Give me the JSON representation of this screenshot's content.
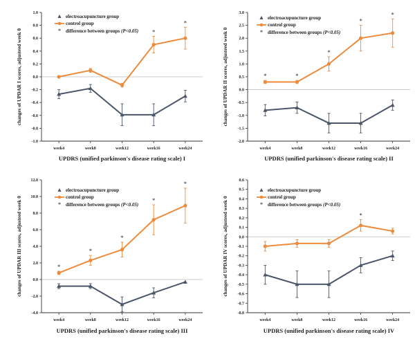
{
  "colors": {
    "electro": "#4a5568",
    "control": "#ed8b3d",
    "star": "#444444",
    "axis": "#333333",
    "zero": "#bbbbbb"
  },
  "legend": {
    "electro": "electroacupuncture group",
    "control": "control group",
    "diff_prefix": "difference between groups",
    "diff_p": "(P<0.05)"
  },
  "chart_data": [
    {
      "type": "line",
      "categories": [
        "week4",
        "week8",
        "week12",
        "week16",
        "week24"
      ],
      "ylim": [
        -1.0,
        1.0
      ],
      "yticks": [
        "-1.0",
        "-0.8",
        "-0.6",
        "-0.4",
        "-0.2",
        "0.0",
        "0.2",
        "0.4",
        "0.6",
        "0.8",
        "1.0"
      ],
      "ylabel": "changes of UPDAR I scores, adjusteed week 0",
      "xlabel": "UPDRS (unified parkinson's disease rating scale) I",
      "series": [
        {
          "name": "electroacupuncture group",
          "values": [
            -0.27,
            -0.18,
            -0.59,
            -0.59,
            -0.3
          ],
          "err": [
            0.07,
            0.06,
            0.17,
            0.17,
            0.09
          ]
        },
        {
          "name": "control group",
          "values": [
            0.0,
            0.1,
            -0.13,
            0.5,
            0.6
          ],
          "err": [
            0.0,
            0.03,
            0.03,
            0.13,
            0.17
          ]
        }
      ],
      "stars": [
        3,
        4
      ]
    },
    {
      "type": "line",
      "categories": [
        "week4",
        "week8",
        "week12",
        "week16",
        "week24"
      ],
      "ylim": [
        -2.0,
        3.0
      ],
      "yticks": [
        "-2.0",
        "-1.5",
        "-1.0",
        "-0.5",
        "0.0",
        "0.5",
        "1.0",
        "1.5",
        "2.0",
        "2.5",
        "3.0"
      ],
      "ylabel": "changes of UPDAR II scores, adjusteed week 0",
      "xlabel": "UPDRS (unified parkinson's disease rating scale) II",
      "series": [
        {
          "name": "electroacupuncture group",
          "values": [
            -0.8,
            -0.7,
            -1.3,
            -1.3,
            -0.6
          ],
          "err": [
            0.22,
            0.22,
            0.38,
            0.38,
            0.2
          ]
        },
        {
          "name": "control group",
          "values": [
            0.3,
            0.3,
            1.0,
            2.0,
            2.2
          ],
          "err": [
            0.06,
            0.06,
            0.28,
            0.5,
            0.55
          ]
        }
      ],
      "stars": [
        0,
        1,
        2,
        3,
        4
      ]
    },
    {
      "type": "line",
      "categories": [
        "week4",
        "week8",
        "week12",
        "week16",
        "week24"
      ],
      "ylim": [
        -4.0,
        12.0
      ],
      "yticks": [
        "-4.0",
        "-2.0",
        "0.0",
        "2.0",
        "4.0",
        "6.0",
        "8.0",
        "10.0",
        "12.0"
      ],
      "ylabel": "changes of UPDAR III scores, adjusteed week 0",
      "xlabel": "UPDRS (unified parkinson's disease rating scale) III",
      "series": [
        {
          "name": "electroacupuncture group",
          "values": [
            -0.8,
            -0.8,
            -3.0,
            -1.6,
            -0.3
          ],
          "err": [
            0.3,
            0.3,
            0.9,
            0.6,
            0.0
          ]
        },
        {
          "name": "control group",
          "values": [
            0.8,
            2.3,
            3.6,
            7.2,
            8.9
          ],
          "err": [
            0.2,
            0.6,
            0.9,
            1.8,
            2.1
          ]
        }
      ],
      "stars": [
        0,
        1,
        2,
        3,
        4
      ]
    },
    {
      "type": "line",
      "categories": [
        "week4",
        "week8",
        "week12",
        "week16",
        "week24"
      ],
      "ylim": [
        -0.8,
        0.6
      ],
      "yticks": [
        "-0.8",
        "-0.7",
        "-0.6",
        "-0.5",
        "-0.4",
        "-0.3",
        "-0.2",
        "-0.1",
        "0.0",
        "0.1",
        "0.2",
        "0.3",
        "0.4",
        "0.5",
        "0.6"
      ],
      "ylabel": "changes of UPDAR IV scores, adjusteed week 0",
      "xlabel": "UPDRS (unified parkinson's disease rating scale) IV",
      "series": [
        {
          "name": "electroacupuncture group",
          "values": [
            -0.4,
            -0.5,
            -0.5,
            -0.3,
            -0.2
          ],
          "err": [
            0.1,
            0.14,
            0.14,
            0.08,
            0.05
          ]
        },
        {
          "name": "control group",
          "values": [
            -0.1,
            -0.07,
            -0.07,
            0.12,
            0.06
          ],
          "err": [
            0.05,
            0.04,
            0.04,
            0.06,
            0.03
          ]
        }
      ],
      "stars": [
        3
      ]
    }
  ]
}
